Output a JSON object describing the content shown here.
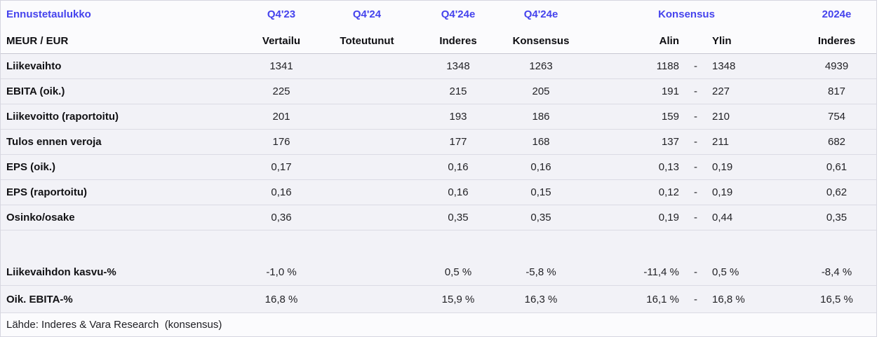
{
  "colors": {
    "accent": "#4543ed",
    "row_background": "#f2f2f7",
    "separator": "#dbdbe4"
  },
  "table": {
    "title": "Ennustetaulukko",
    "unit_label": "MEUR / EUR",
    "columns_row1": {
      "q423": "Q4'23",
      "q424": "Q4'24",
      "q424e_inderes": "Q4'24e",
      "q424e_konsensus": "Q4'24e",
      "konsensus_group": "Konsensus",
      "y2024e": "2024e"
    },
    "columns_row2": {
      "vertailu": "Vertailu",
      "toteutunut": "Toteutunut",
      "inderes": "Inderes",
      "konsensus": "Konsensus",
      "alin": "Alin",
      "ylin": "Ylin",
      "inderes_2024e": "Inderes"
    },
    "rows": [
      {
        "label": "Liikevaihto",
        "cells": [
          "1341",
          "",
          "1348",
          "1263",
          "1188",
          "-",
          "1348",
          "4939"
        ]
      },
      {
        "label": "EBITA (oik.)",
        "cells": [
          "225",
          "",
          "215",
          "205",
          "191",
          "-",
          "227",
          "817"
        ]
      },
      {
        "label": "Liikevoitto (raportoitu)",
        "cells": [
          "201",
          "",
          "193",
          "186",
          "159",
          "-",
          "210",
          "754"
        ]
      },
      {
        "label": "Tulos ennen veroja",
        "cells": [
          "176",
          "",
          "177",
          "168",
          "137",
          "-",
          "211",
          "682"
        ]
      },
      {
        "label": "EPS (oik.)",
        "cells": [
          "0,17",
          "",
          "0,16",
          "0,16",
          "0,13",
          "-",
          "0,19",
          "0,61"
        ]
      },
      {
        "label": "EPS (raportoitu)",
        "cells": [
          "0,16",
          "",
          "0,16",
          "0,15",
          "0,12",
          "-",
          "0,19",
          "0,62"
        ]
      },
      {
        "label": "Osinko/osake",
        "cells": [
          "0,36",
          "",
          "0,35",
          "0,35",
          "0,19",
          "-",
          "0,44",
          "0,35"
        ]
      },
      {
        "spacer": true
      },
      {
        "label": "Liikevaihdon kasvu-%",
        "cells": [
          "-1,0 %",
          "",
          "0,5 %",
          "-5,8 %",
          "-11,4 %",
          "-",
          "0,5 %",
          "-8,4 %"
        ]
      },
      {
        "label": "Oik. EBITA-%",
        "cells": [
          "16,8 %",
          "",
          "15,9 %",
          "16,3 %",
          "16,1 %",
          "-",
          "16,8 %",
          "16,5 %"
        ]
      }
    ],
    "source": "Lähde: Inderes & Vara Research  (konsensus)"
  }
}
